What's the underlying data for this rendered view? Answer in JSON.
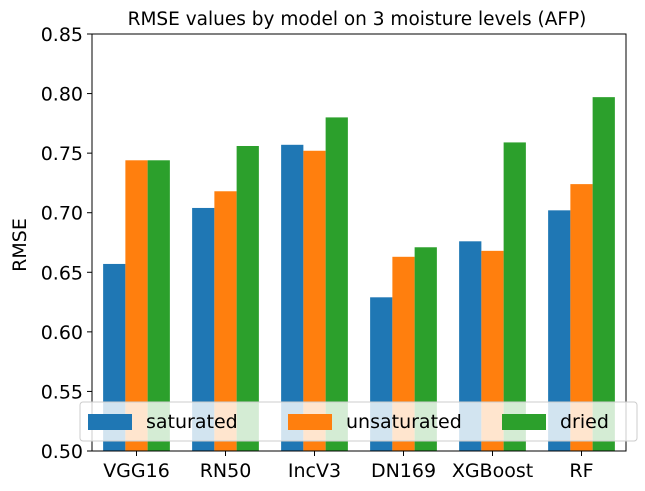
{
  "chart_data": {
    "type": "bar",
    "title": "RMSE values by model on 3 moisture levels (AFP)",
    "xlabel": "",
    "ylabel": "RMSE",
    "ylim": [
      0.5,
      0.85
    ],
    "yticks": [
      "0.50",
      "0.55",
      "0.60",
      "0.65",
      "0.70",
      "0.75",
      "0.80",
      "0.85"
    ],
    "categories": [
      "VGG16",
      "RN50",
      "IncV3",
      "DN169",
      "XGBoost",
      "RF"
    ],
    "series": [
      {
        "name": "saturated",
        "color": "#1f77b4",
        "values": [
          0.657,
          0.704,
          0.757,
          0.629,
          0.676,
          0.702
        ]
      },
      {
        "name": "unsaturated",
        "color": "#ff7f0e",
        "values": [
          0.744,
          0.718,
          0.752,
          0.663,
          0.668,
          0.724
        ]
      },
      {
        "name": "dried",
        "color": "#2ca02c",
        "values": [
          0.744,
          0.756,
          0.78,
          0.671,
          0.759,
          0.797
        ]
      }
    ],
    "grid": false,
    "legend": {
      "placement": "bottom",
      "columns": 3
    }
  }
}
